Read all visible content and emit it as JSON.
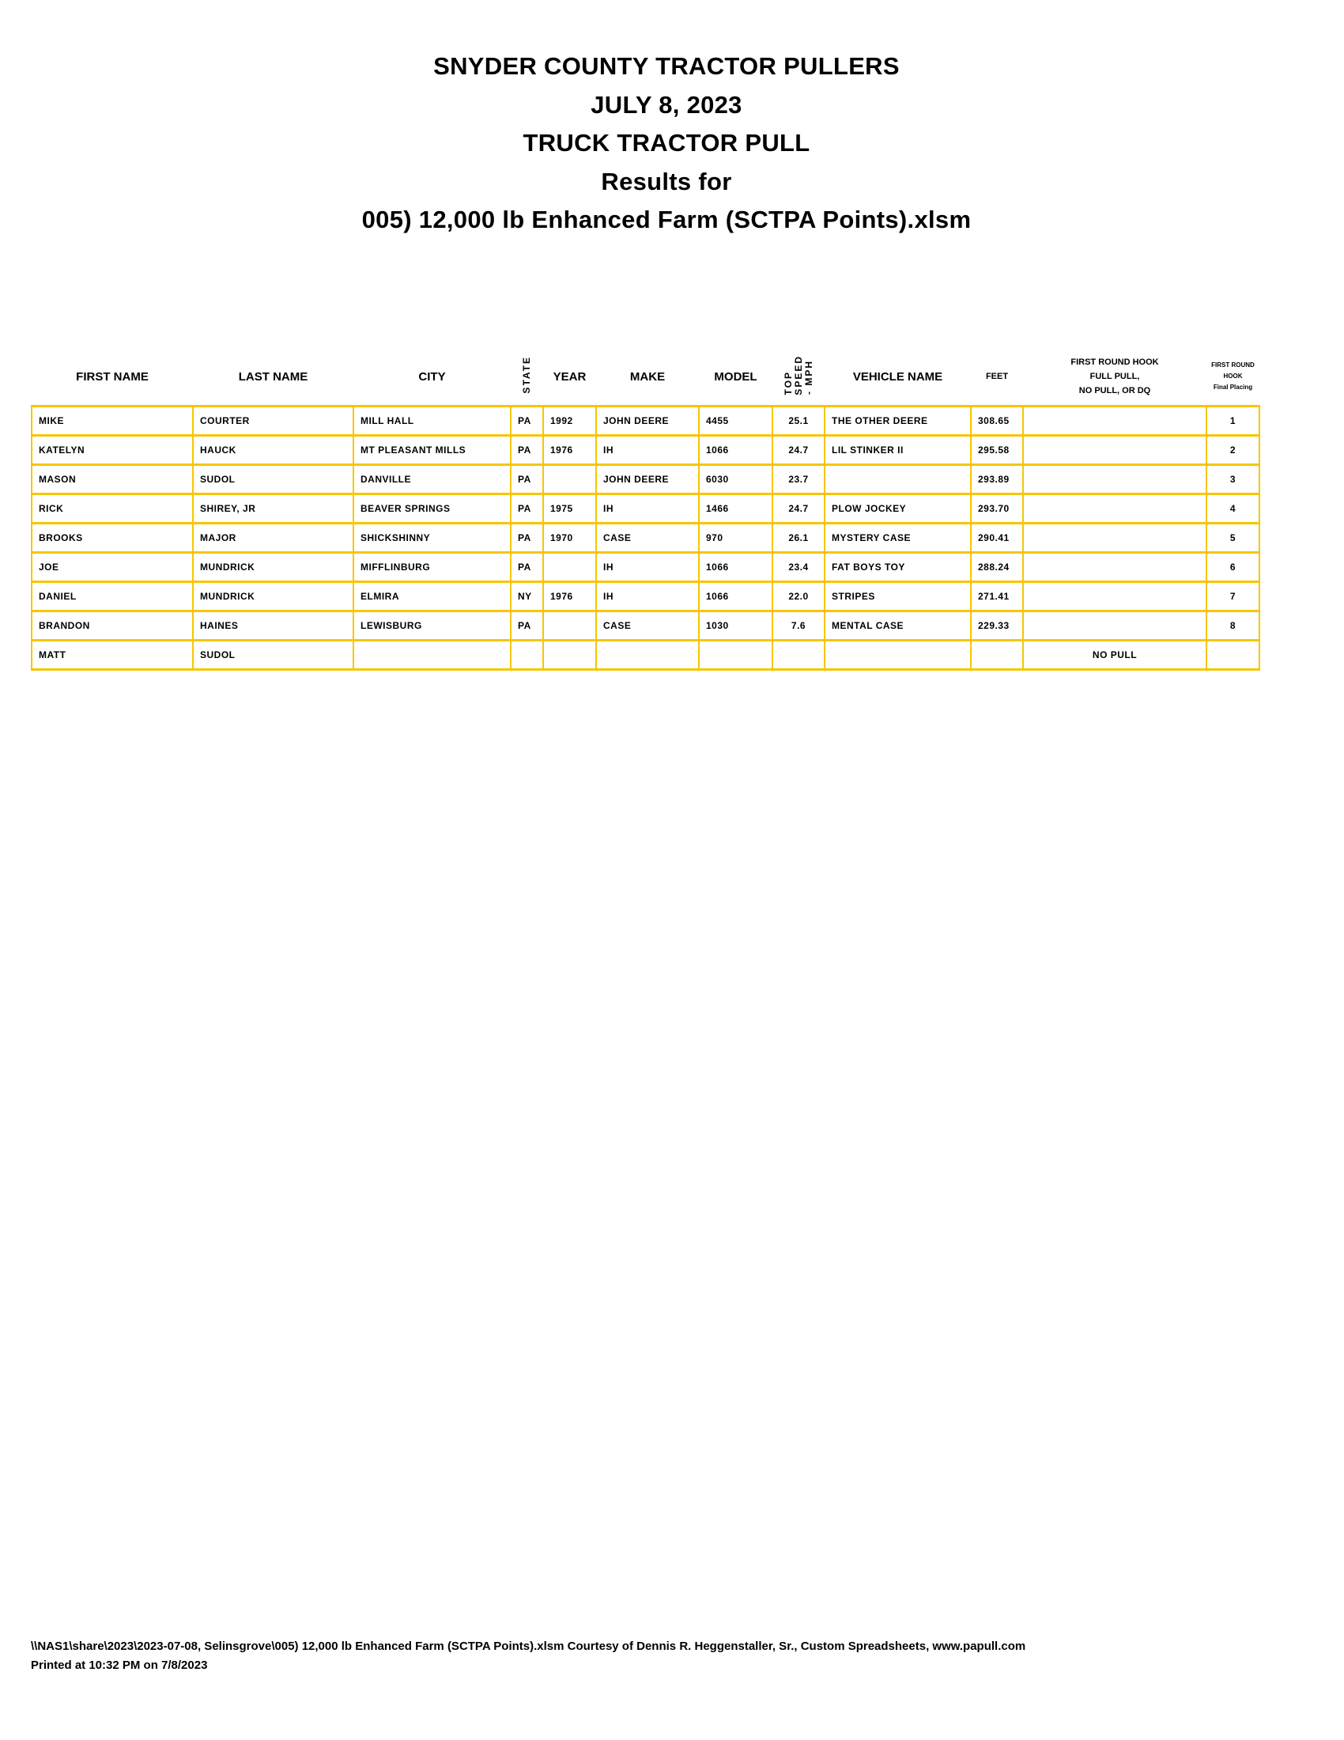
{
  "titles": {
    "line1": "SNYDER COUNTY TRACTOR PULLERS",
    "line2": "JULY 8, 2023",
    "line3": "TRUCK TRACTOR PULL",
    "line4": "Results for",
    "line5": "005) 12,000 lb Enhanced Farm (SCTPA Points).xlsm"
  },
  "table": {
    "headers": {
      "first_name": "FIRST NAME",
      "last_name": "LAST NAME",
      "city": "CITY",
      "state": "STATE",
      "year": "YEAR",
      "make": "MAKE",
      "model": "MODEL",
      "top_speed_1": "TOP",
      "top_speed_2": "SPEED",
      "top_speed_3": "- MPH",
      "vehicle_name": "VEHICLE NAME",
      "feet": "FEET",
      "hook_1": "FIRST ROUND HOOK",
      "hook_2": "FULL PULL,",
      "hook_3": "NO PULL, OR DQ",
      "placing_1": "FIRST ROUND",
      "placing_2": "HOOK",
      "placing_3": "Final Placing"
    },
    "rows": [
      {
        "first": "MIKE",
        "last": "COURTER",
        "city": "MILL HALL",
        "state": "PA",
        "year": "1992",
        "make": "JOHN DEERE",
        "model": "4455",
        "speed": "25.1",
        "vehicle": "THE OTHER DEERE",
        "feet": "308.65",
        "hook": "",
        "place": "1"
      },
      {
        "first": "KATELYN",
        "last": "HAUCK",
        "city": "MT PLEASANT MILLS",
        "state": "PA",
        "year": "1976",
        "make": "IH",
        "model": "1066",
        "speed": "24.7",
        "vehicle": "LIL STINKER II",
        "feet": "295.58",
        "hook": "",
        "place": "2"
      },
      {
        "first": "MASON",
        "last": "SUDOL",
        "city": "DANVILLE",
        "state": "PA",
        "year": "",
        "make": "JOHN DEERE",
        "model": "6030",
        "speed": "23.7",
        "vehicle": "",
        "feet": "293.89",
        "hook": "",
        "place": "3"
      },
      {
        "first": "RICK",
        "last": "SHIREY, JR",
        "city": "BEAVER SPRINGS",
        "state": "PA",
        "year": "1975",
        "make": "IH",
        "model": "1466",
        "speed": "24.7",
        "vehicle": "PLOW JOCKEY",
        "feet": "293.70",
        "hook": "",
        "place": "4"
      },
      {
        "first": "BROOKS",
        "last": "MAJOR",
        "city": "SHICKSHINNY",
        "state": "PA",
        "year": "1970",
        "make": "CASE",
        "model": "970",
        "speed": "26.1",
        "vehicle": "MYSTERY CASE",
        "feet": "290.41",
        "hook": "",
        "place": "5"
      },
      {
        "first": "JOE",
        "last": "MUNDRICK",
        "city": "MIFFLINBURG",
        "state": "PA",
        "year": "",
        "make": "IH",
        "model": "1066",
        "speed": "23.4",
        "vehicle": "FAT BOYS TOY",
        "feet": "288.24",
        "hook": "",
        "place": "6"
      },
      {
        "first": "DANIEL",
        "last": "MUNDRICK",
        "city": "ELMIRA",
        "state": "NY",
        "year": "1976",
        "make": "IH",
        "model": "1066",
        "speed": "22.0",
        "vehicle": "STRIPES",
        "feet": "271.41",
        "hook": "",
        "place": "7"
      },
      {
        "first": "BRANDON",
        "last": "HAINES",
        "city": "LEWISBURG",
        "state": "PA",
        "year": "",
        "make": "CASE",
        "model": "1030",
        "speed": "7.6",
        "vehicle": "MENTAL CASE",
        "feet": "229.33",
        "hook": "",
        "place": "8"
      },
      {
        "first": "MATT",
        "last": "SUDOL",
        "city": "",
        "state": "",
        "year": "",
        "make": "",
        "model": "",
        "speed": "",
        "vehicle": "",
        "feet": "",
        "hook": "NO PULL",
        "place": ""
      }
    ]
  },
  "footer": {
    "path_line": "\\\\NAS1\\share\\2023\\2023-07-08, Selinsgrove\\005) 12,000 lb Enhanced Farm (SCTPA Points).xlsm  Courtesy of Dennis R. Heggenstaller, Sr., Custom Spreadsheets, www.papull.com",
    "printed_line": "Printed at 10:32 PM on 7/8/2023"
  },
  "colors": {
    "grid": "#f7c600"
  }
}
